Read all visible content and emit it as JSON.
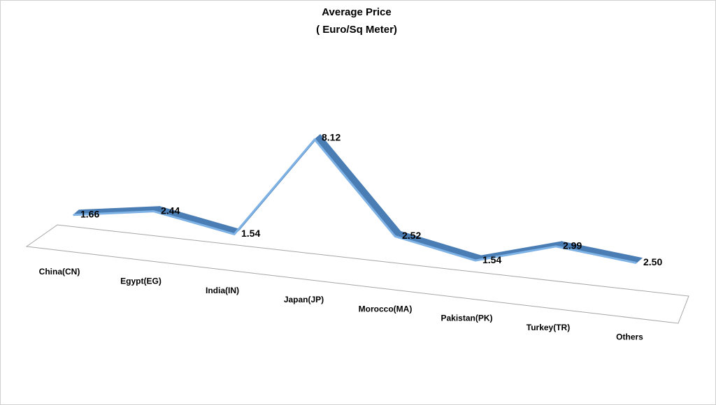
{
  "chart_data": {
    "type": "line3d",
    "title": [
      "Average Price",
      "( Euro/Sq Meter)"
    ],
    "categories": [
      "China(CN)",
      "Egypt(EG)",
      "India(IN)",
      "Japan(JP)",
      "Morocco(MA)",
      "Pakistan(PK)",
      "Turkey(TR)",
      "Others"
    ],
    "values": [
      1.66,
      2.44,
      1.54,
      8.12,
      2.52,
      1.54,
      2.99,
      2.5
    ],
    "value_labels": [
      "1.66",
      "2.44",
      "1.54",
      "8.12",
      "2.52",
      "1.54",
      "2.99",
      "2.50"
    ],
    "color": "#4a7db4"
  }
}
